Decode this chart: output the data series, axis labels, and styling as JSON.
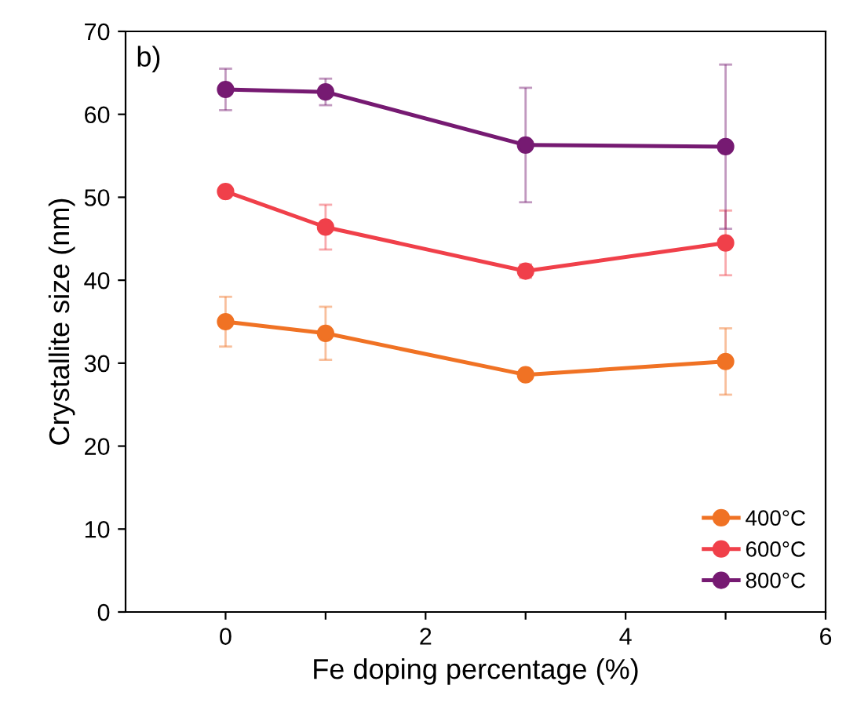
{
  "chart_data": {
    "type": "line",
    "xlabel": "Fe doping percentage (%)",
    "ylabel": "Crystallite size (nm)",
    "annotations": [
      "b)"
    ],
    "x": [
      0,
      1,
      3,
      5
    ],
    "series": [
      {
        "name": "400°C",
        "color": "#f07224",
        "values": [
          35.0,
          33.6,
          28.6,
          30.2
        ],
        "errors": [
          3.0,
          3.2,
          0.5,
          4.0
        ]
      },
      {
        "name": "600°C",
        "color": "#f0404a",
        "values": [
          50.7,
          46.4,
          41.1,
          44.5
        ],
        "errors": [
          0.3,
          2.7,
          0.8,
          3.9
        ]
      },
      {
        "name": "800°C",
        "color": "#761a72",
        "values": [
          63.0,
          62.7,
          56.3,
          56.1
        ],
        "errors": [
          2.5,
          1.6,
          6.9,
          9.9
        ]
      }
    ],
    "xlim": [
      -1,
      6
    ],
    "ylim": [
      0,
      70
    ],
    "xticks": [
      0,
      {
        "value": 1,
        "label": null
      },
      2,
      {
        "value": 3,
        "label": null
      },
      4,
      {
        "value": 5,
        "label": null
      },
      6
    ],
    "yticks": [
      0,
      10,
      20,
      30,
      40,
      50,
      60,
      70
    ],
    "marker": "circle",
    "line_style": "solid",
    "legend": "bottom right",
    "grid": false
  }
}
